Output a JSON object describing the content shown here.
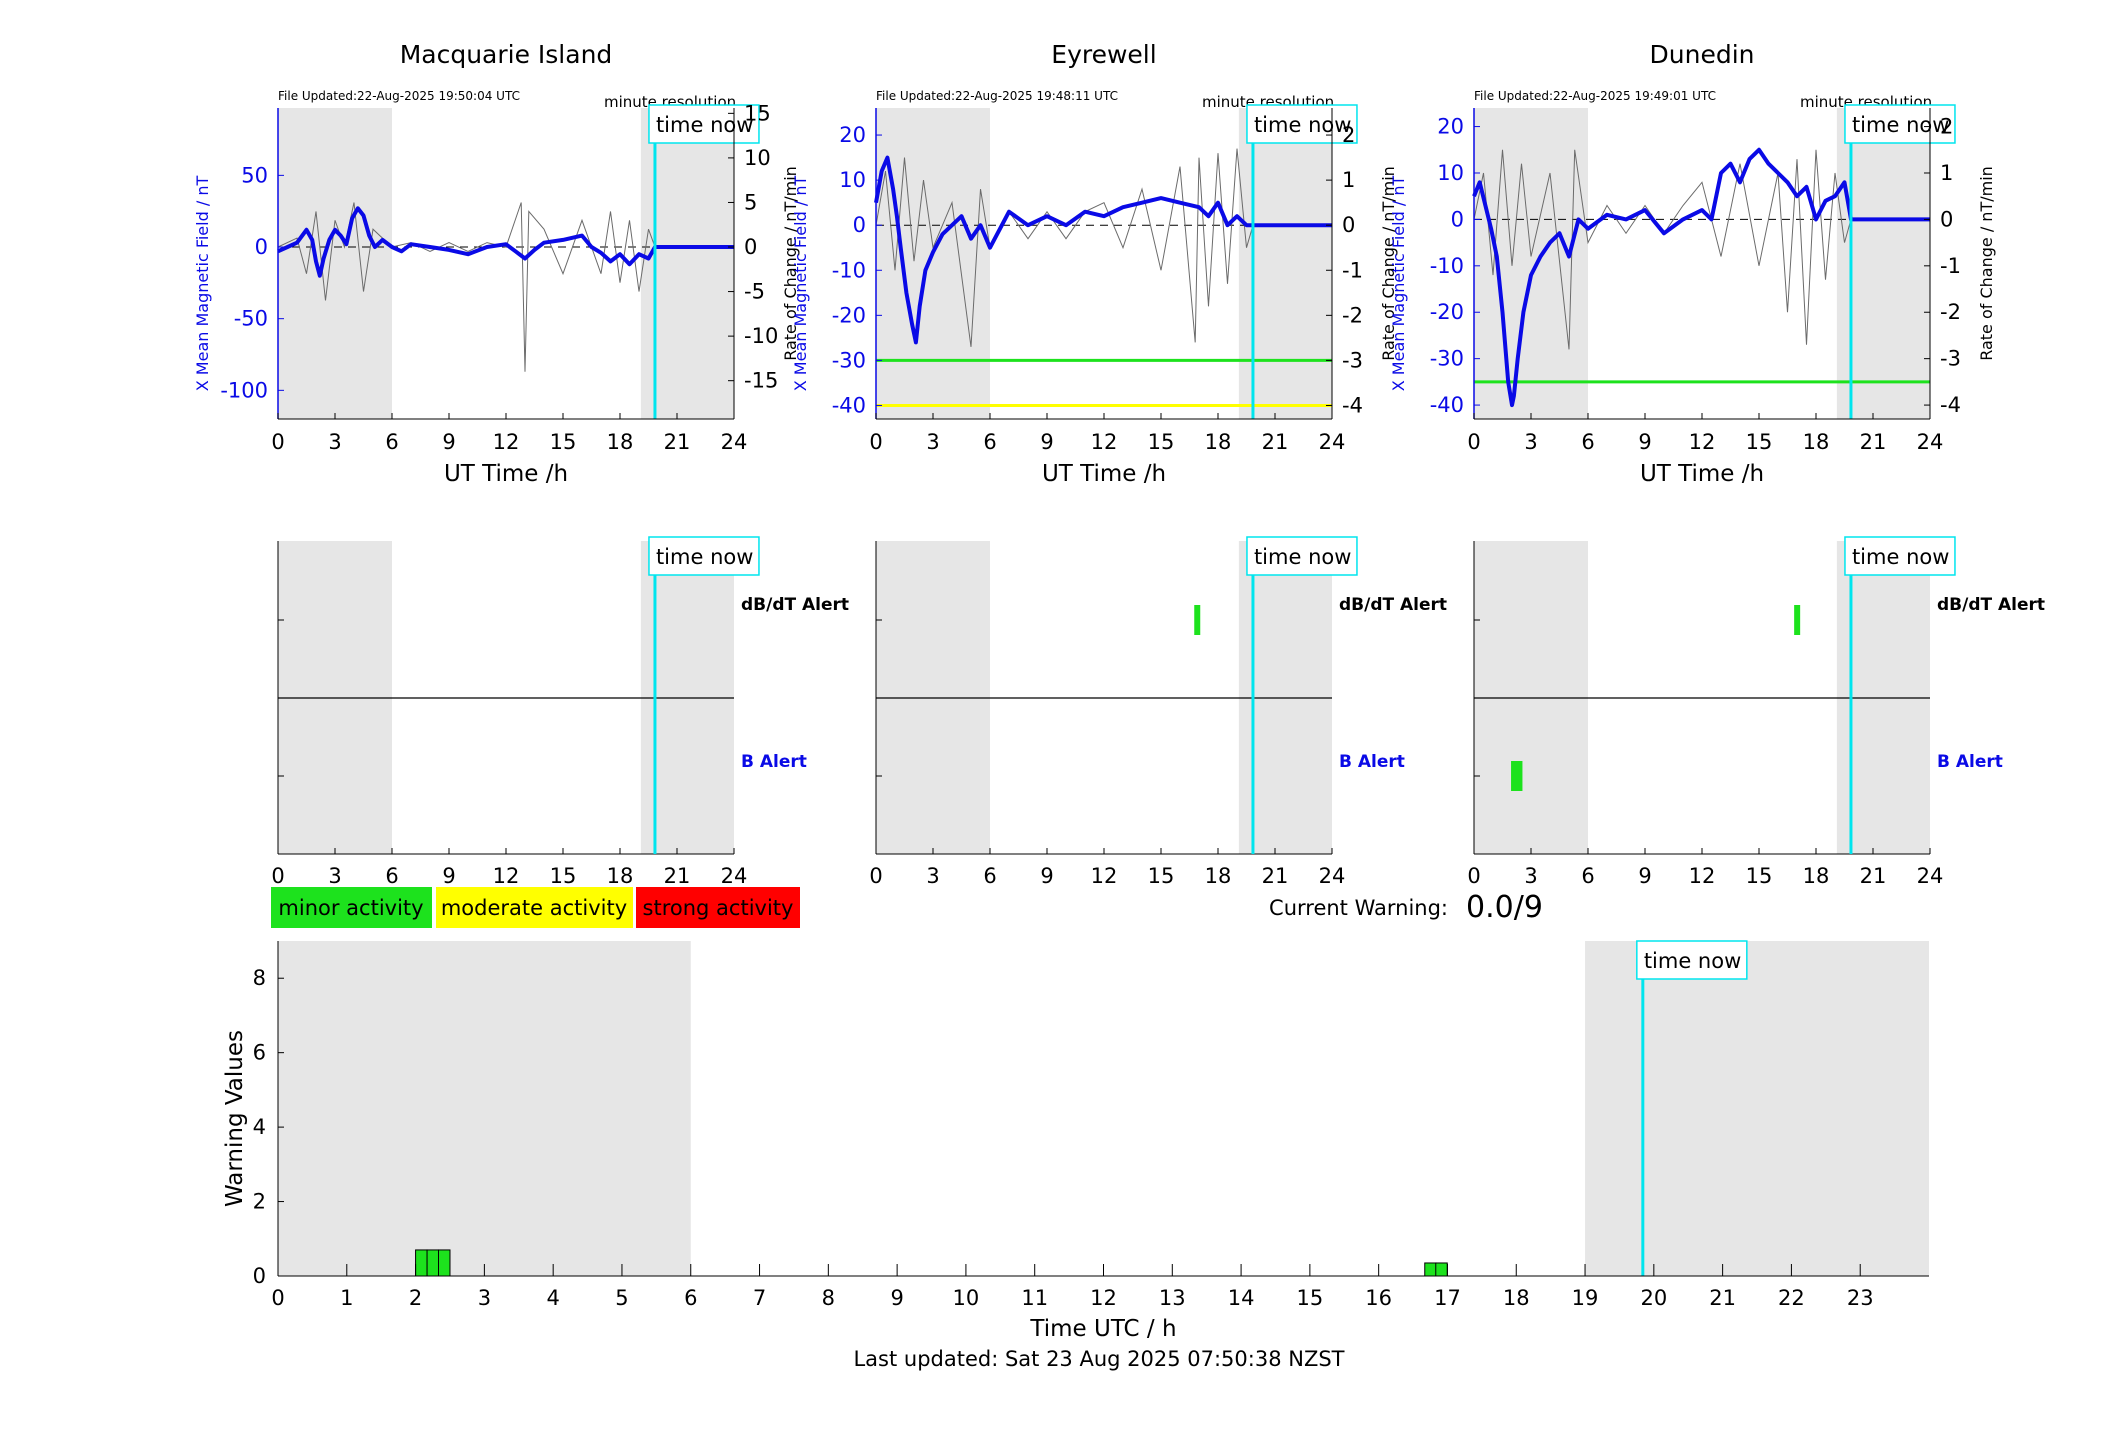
{
  "colors": {
    "field": "#0a0ae6",
    "rate": "#6b6b6b",
    "night": "#e6e6e6",
    "time_now": "#00e5ee",
    "minor": "#1de21d",
    "moderate": "#ffff00",
    "strong": "#ff0000"
  },
  "stations": [
    {
      "name": "Macquarie Island",
      "file_updated": "File Updated:22-Aug-2025 19:50:04 UTC",
      "resolution": "minute resolution",
      "time_now_label": "time now",
      "y_left_label": "X Mean Magnetic Field / nT",
      "y_right_label": "Rate of Change / nT/min",
      "x_label": "UT Time /h",
      "y_left_ticks": [
        "50",
        "0",
        "-50",
        "-100"
      ],
      "y_right_ticks": [
        "15",
        "10",
        "5",
        "0",
        "-5",
        "-10",
        "-15"
      ],
      "x_ticks": [
        "0",
        "3",
        "6",
        "9",
        "12",
        "15",
        "18",
        "21",
        "24"
      ],
      "alert_top_label": "dB/dT Alert",
      "alert_bottom_label": "B Alert"
    },
    {
      "name": "Eyrewell",
      "file_updated": "File Updated:22-Aug-2025 19:48:11 UTC",
      "resolution": "minute resolution",
      "time_now_label": "time now",
      "y_left_label": "X Mean Magnetic Field / nT",
      "y_right_label": "Rate of Change / nT/min",
      "x_label": "UT Time /h",
      "y_left_ticks": [
        "20",
        "10",
        "0",
        "-10",
        "-20",
        "-30",
        "-40"
      ],
      "y_right_ticks": [
        "2",
        "1",
        "0",
        "-1",
        "-2",
        "-3",
        "-4"
      ],
      "x_ticks": [
        "0",
        "3",
        "6",
        "9",
        "12",
        "15",
        "18",
        "21",
        "24"
      ],
      "alert_top_label": "dB/dT Alert",
      "alert_bottom_label": "B Alert"
    },
    {
      "name": "Dunedin",
      "file_updated": "File Updated:22-Aug-2025 19:49:01 UTC",
      "resolution": "minute resolution",
      "time_now_label": "time now",
      "y_left_label": "X Mean Magnetic Field / nT",
      "y_right_label": "Rate of Change / nT/min",
      "x_label": "UT Time /h",
      "y_left_ticks": [
        "20",
        "10",
        "0",
        "-10",
        "-20",
        "-30",
        "-40"
      ],
      "y_right_ticks": [
        "2",
        "1",
        "0",
        "-1",
        "-2",
        "-3",
        "-4"
      ],
      "x_ticks": [
        "0",
        "3",
        "6",
        "9",
        "12",
        "15",
        "18",
        "21",
        "24"
      ],
      "alert_top_label": "dB/dT Alert",
      "alert_bottom_label": "B Alert"
    }
  ],
  "legend": {
    "minor": "minor activity",
    "moderate": "moderate activity",
    "strong": "strong activity"
  },
  "current_warning": {
    "label": "Current Warning:",
    "value": "0.0/9"
  },
  "warning_chart": {
    "ylabel": "Warning Values",
    "xlabel": "Time UTC / h",
    "time_now_label": "time now",
    "y_ticks": [
      "0",
      "2",
      "4",
      "6",
      "8"
    ],
    "x_ticks": [
      "0",
      "1",
      "2",
      "3",
      "4",
      "5",
      "6",
      "7",
      "8",
      "9",
      "10",
      "11",
      "12",
      "13",
      "14",
      "15",
      "16",
      "17",
      "18",
      "19",
      "20",
      "21",
      "22",
      "23"
    ]
  },
  "last_updated": "Last updated: Sat 23 Aug 2025 07:50:38 NZST",
  "chart_data": [
    {
      "type": "line",
      "title": "Macquarie Island",
      "xlabel": "UT Time /h",
      "ylabel": "X Mean Magnetic Field / nT",
      "ylabel_right": "Rate of Change / nT/min",
      "xlim": [
        0,
        24
      ],
      "ylim": [
        -120,
        97
      ],
      "ylim_right": [
        -19.3,
        15.6
      ],
      "night_spans": [
        [
          0,
          6
        ],
        [
          19.1,
          24
        ]
      ],
      "time_now": 19.84,
      "thresholds": [],
      "series": [
        {
          "role": "field",
          "x": [
            0,
            0.5,
            1,
            1.5,
            1.8,
            2,
            2.2,
            2.4,
            2.7,
            3,
            3.3,
            3.6,
            3.9,
            4.2,
            4.5,
            4.8,
            5.1,
            5.5,
            6,
            6.5,
            7,
            8,
            9,
            10,
            11,
            12,
            12.5,
            13,
            13.5,
            14,
            15,
            16,
            16.5,
            17,
            17.5,
            18,
            18.5,
            19,
            19.5,
            19.84,
            20,
            22,
            24
          ],
          "y": [
            -3,
            0,
            3,
            12,
            5,
            -10,
            -20,
            -8,
            5,
            12,
            8,
            2,
            20,
            27,
            22,
            8,
            0,
            5,
            0,
            -3,
            2,
            0,
            -2,
            -5,
            0,
            2,
            -3,
            -8,
            -2,
            3,
            5,
            8,
            0,
            -4,
            -10,
            -5,
            -12,
            -5,
            -8,
            0,
            0,
            0,
            0
          ]
        },
        {
          "role": "rate",
          "x": [
            0,
            1,
            1.5,
            2,
            2.5,
            3,
            3.5,
            4,
            4.5,
            5,
            6,
            7,
            8,
            9,
            10,
            11,
            12,
            12.8,
            13,
            13.2,
            14,
            15,
            16,
            17,
            17.5,
            18,
            18.5,
            19,
            19.5,
            19.84,
            24
          ],
          "y": [
            0,
            1,
            -3,
            4,
            -6,
            3,
            0,
            5,
            -5,
            2,
            0,
            0.5,
            -0.5,
            0.5,
            -0.5,
            0.5,
            0,
            5,
            -14,
            4,
            2,
            -3,
            3,
            -3,
            4,
            -4,
            3,
            -5,
            2,
            0,
            0
          ]
        }
      ]
    },
    {
      "type": "line",
      "title": "Eyrewell",
      "xlabel": "UT Time /h",
      "ylabel": "X Mean Magnetic Field / nT",
      "ylabel_right": "Rate of Change / nT/min",
      "xlim": [
        0,
        24
      ],
      "ylim": [
        -43,
        26
      ],
      "ylim_right": [
        -4.3,
        2.6
      ],
      "night_spans": [
        [
          0,
          6
        ],
        [
          19.1,
          24
        ]
      ],
      "time_now": 19.84,
      "thresholds": [
        {
          "value": -30,
          "level": "minor"
        },
        {
          "value": -40,
          "level": "moderate"
        }
      ],
      "series": [
        {
          "role": "field",
          "x": [
            0,
            0.3,
            0.6,
            0.9,
            1.1,
            1.3,
            1.6,
            1.9,
            2.1,
            2.3,
            2.6,
            3,
            3.5,
            4,
            4.5,
            5,
            5.5,
            6,
            7,
            8,
            9,
            10,
            11,
            12,
            13,
            14,
            15,
            16,
            17,
            17.5,
            18,
            18.5,
            19,
            19.5,
            19.84,
            20,
            22,
            24
          ],
          "y": [
            5,
            12,
            15,
            8,
            2,
            -5,
            -15,
            -22,
            -26,
            -18,
            -10,
            -6,
            -2,
            0,
            2,
            -3,
            0,
            -5,
            3,
            0,
            2,
            0,
            3,
            2,
            4,
            5,
            6,
            5,
            4,
            2,
            5,
            0,
            2,
            0,
            0,
            0,
            0,
            0
          ]
        },
        {
          "role": "rate",
          "x": [
            0,
            0.5,
            1,
            1.5,
            2,
            2.5,
            3,
            4,
            5,
            5.5,
            6,
            7,
            8,
            9,
            10,
            11,
            12,
            13,
            14,
            15,
            16,
            16.8,
            17,
            17.5,
            18,
            18.5,
            19,
            19.5,
            19.84,
            24
          ],
          "y": [
            0,
            1.2,
            -1,
            1.5,
            -0.8,
            1,
            -0.5,
            0.5,
            -2.7,
            0.8,
            -0.5,
            0.3,
            -0.3,
            0.3,
            -0.3,
            0.3,
            0.5,
            -0.5,
            0.8,
            -1,
            1.3,
            -2.6,
            1.5,
            -1.8,
            1.6,
            -1.3,
            1.7,
            -0.5,
            0,
            0
          ]
        }
      ]
    },
    {
      "type": "line",
      "title": "Dunedin",
      "xlabel": "UT Time /h",
      "ylabel": "X Mean Magnetic Field / nT",
      "ylabel_right": "Rate of Change / nT/min",
      "xlim": [
        0,
        24
      ],
      "ylim": [
        -43,
        24
      ],
      "ylim_right": [
        -4.3,
        2.4
      ],
      "night_spans": [
        [
          0,
          6
        ],
        [
          19.1,
          24
        ]
      ],
      "time_now": 19.84,
      "thresholds": [
        {
          "value": -35,
          "level": "minor"
        }
      ],
      "series": [
        {
          "role": "field",
          "x": [
            0,
            0.3,
            0.6,
            0.9,
            1.2,
            1.5,
            1.8,
            2.0,
            2.1,
            2.3,
            2.6,
            3,
            3.5,
            4,
            4.5,
            5,
            5.5,
            6,
            7,
            8,
            9,
            10,
            11,
            12,
            12.5,
            13,
            13.5,
            14,
            14.5,
            15,
            15.5,
            16,
            16.5,
            17,
            17.5,
            18,
            18.5,
            19,
            19.5,
            19.84,
            20,
            22,
            24
          ],
          "y": [
            5,
            8,
            3,
            -2,
            -8,
            -20,
            -35,
            -40,
            -38,
            -30,
            -20,
            -12,
            -8,
            -5,
            -3,
            -8,
            0,
            -2,
            1,
            0,
            2,
            -3,
            0,
            2,
            0,
            10,
            12,
            8,
            13,
            15,
            12,
            10,
            8,
            5,
            7,
            0,
            4,
            5,
            8,
            0,
            0,
            0,
            0
          ]
        },
        {
          "role": "rate",
          "x": [
            0,
            0.5,
            1,
            1.5,
            2,
            2.5,
            3,
            4,
            5,
            5.3,
            6,
            7,
            8,
            9,
            10,
            11,
            12,
            13,
            14,
            15,
            16,
            16.5,
            17,
            17.5,
            18,
            18.5,
            19,
            19.5,
            19.84,
            24
          ],
          "y": [
            0,
            1,
            -1.2,
            1.5,
            -1,
            1.2,
            -0.8,
            1,
            -2.8,
            1.5,
            -0.5,
            0.3,
            -0.3,
            0.3,
            -0.3,
            0.3,
            0.8,
            -0.8,
            1.2,
            -1,
            1,
            -2,
            1.3,
            -2.7,
            1.5,
            -1.3,
            1,
            -0.5,
            0,
            0
          ]
        }
      ]
    },
    {
      "type": "bar",
      "title": "",
      "xlabel": "Time UTC / h",
      "ylabel": "Warning Values",
      "xlim": [
        0,
        24
      ],
      "ylim": [
        0,
        9
      ],
      "night_spans": [
        [
          0,
          6
        ],
        [
          19,
          24
        ]
      ],
      "time_now": 19.84,
      "bars": [
        {
          "x": 2.0,
          "width": 0.167,
          "value": 0.7,
          "level": "minor"
        },
        {
          "x": 2.167,
          "width": 0.167,
          "value": 0.7,
          "level": "minor"
        },
        {
          "x": 2.333,
          "width": 0.167,
          "value": 0.7,
          "level": "minor"
        },
        {
          "x": 16.67,
          "width": 0.167,
          "value": 0.35,
          "level": "minor"
        },
        {
          "x": 16.83,
          "width": 0.167,
          "value": 0.35,
          "level": "minor"
        }
      ]
    }
  ],
  "alert_events": [
    {
      "station": "Eyrewell",
      "type": "dB/dT Alert",
      "start": 16.75,
      "end": 16.95,
      "level": "minor"
    },
    {
      "station": "Dunedin",
      "type": "dB/dT Alert",
      "start": 16.85,
      "end": 17.05,
      "level": "minor"
    },
    {
      "station": "Dunedin",
      "type": "B Alert",
      "start": 1.95,
      "end": 2.55,
      "level": "minor"
    }
  ]
}
